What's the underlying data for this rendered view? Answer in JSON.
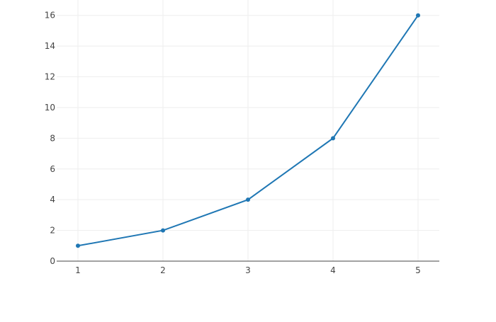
{
  "chart_data": {
    "type": "line",
    "mode": "lines+markers",
    "x": [
      1,
      2,
      3,
      4,
      5
    ],
    "series": [
      {
        "values": [
          1,
          2,
          4,
          8,
          16
        ],
        "color": "#1f77b4"
      }
    ],
    "xlim": [
      0.75,
      5.25
    ],
    "ylim": [
      0,
      17
    ],
    "x_ticks": [
      1,
      2,
      3,
      4,
      5
    ],
    "y_ticks": [
      0,
      2,
      4,
      6,
      8,
      10,
      12,
      14,
      16
    ],
    "grid": true,
    "title": "",
    "xlabel": "",
    "ylabel": ""
  }
}
